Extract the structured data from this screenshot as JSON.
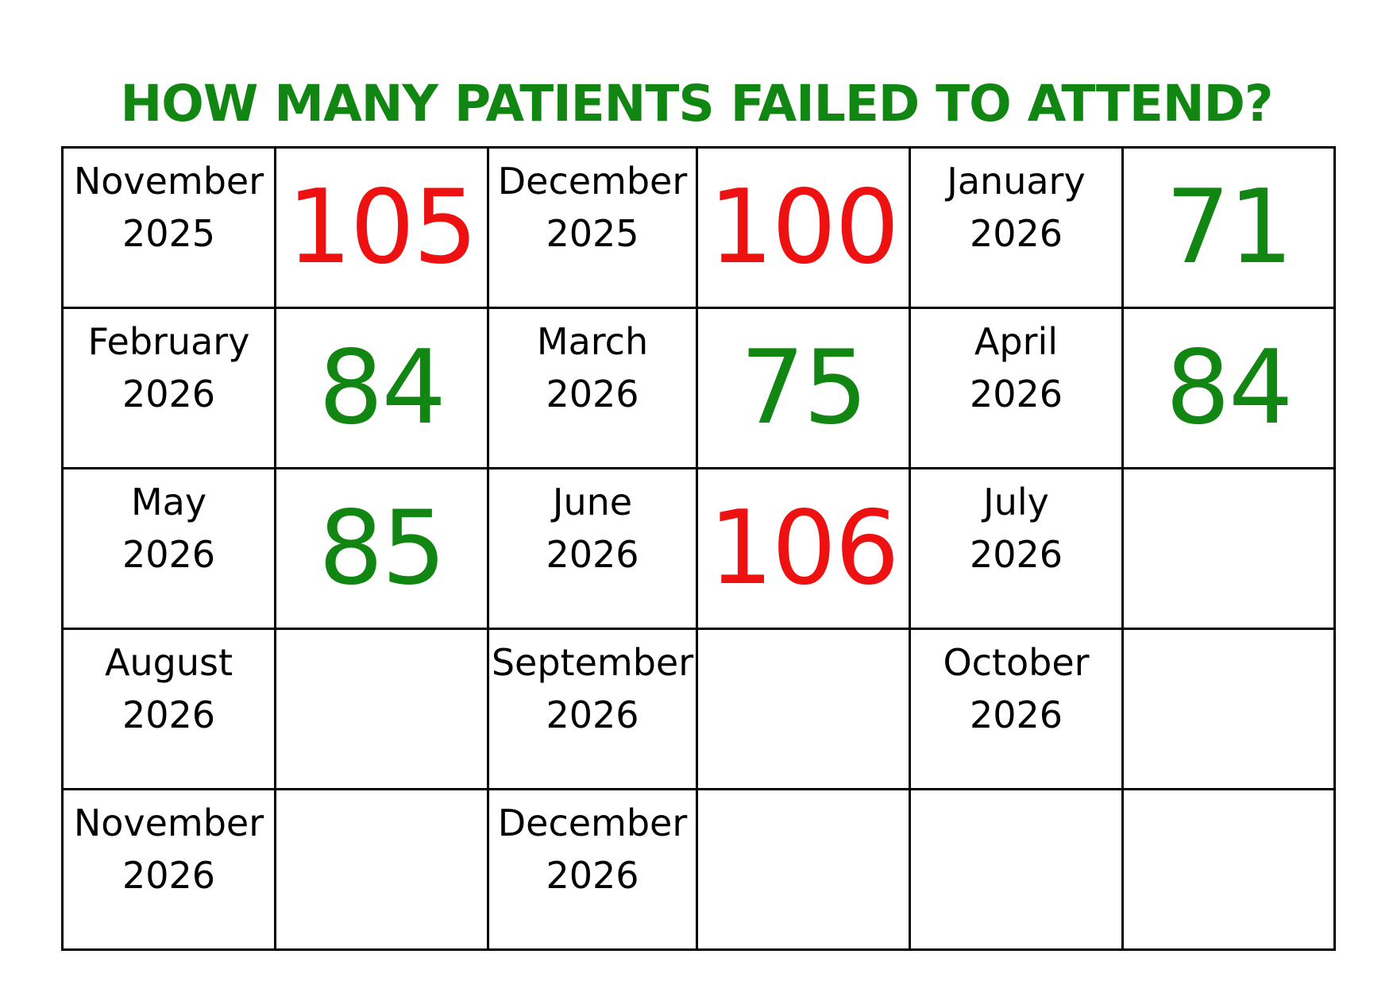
{
  "title": "HOW MANY PATIENTS FAILED TO ATTEND?",
  "colors": {
    "title": "#128612",
    "over_threshold": "#ee1111",
    "under_threshold": "#128612"
  },
  "rows": [
    [
      {
        "month": "November",
        "year": "2025",
        "value": "105",
        "status": "over_threshold"
      },
      {
        "month": "December",
        "year": "2025",
        "value": "100",
        "status": "over_threshold"
      },
      {
        "month": "January",
        "year": "2026",
        "value": "71",
        "status": "under_threshold"
      }
    ],
    [
      {
        "month": "February",
        "year": "2026",
        "value": "84",
        "status": "under_threshold"
      },
      {
        "month": "March",
        "year": "2026",
        "value": "75",
        "status": "under_threshold"
      },
      {
        "month": "April",
        "year": "2026",
        "value": "84",
        "status": "under_threshold"
      }
    ],
    [
      {
        "month": "May",
        "year": "2026",
        "value": "85",
        "status": "under_threshold"
      },
      {
        "month": "June",
        "year": "2026",
        "value": "106",
        "status": "over_threshold"
      },
      {
        "month": "July",
        "year": "2026",
        "value": "",
        "status": ""
      }
    ],
    [
      {
        "month": "August",
        "year": "2026",
        "value": "",
        "status": ""
      },
      {
        "month": "September",
        "year": "2026",
        "value": "",
        "status": ""
      },
      {
        "month": "October",
        "year": "2026",
        "value": "",
        "status": ""
      }
    ],
    [
      {
        "month": "November",
        "year": "2026",
        "value": "",
        "status": ""
      },
      {
        "month": "December",
        "year": "2026",
        "value": "",
        "status": ""
      },
      {
        "month": "",
        "year": "",
        "value": "",
        "status": ""
      }
    ]
  ]
}
